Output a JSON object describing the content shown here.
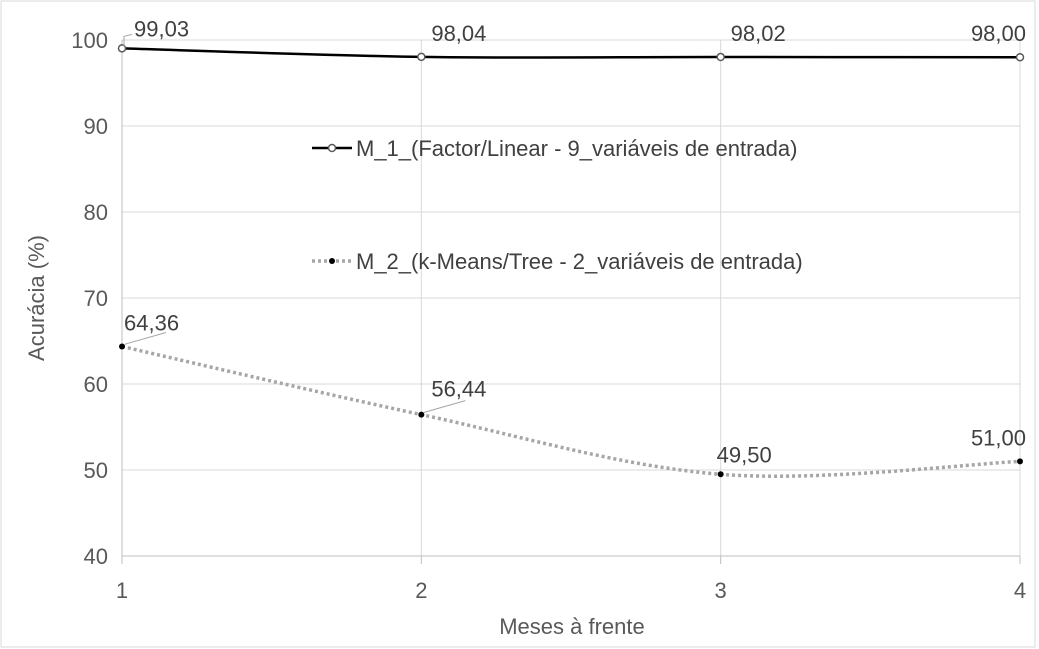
{
  "chart_data": {
    "type": "line",
    "title": "",
    "xlabel": "Meses à frente",
    "ylabel": "Acurácia (%)",
    "x": [
      1,
      2,
      3,
      4
    ],
    "x_tick_labels": [
      "1",
      "2",
      "3",
      "4"
    ],
    "ylim": [
      40,
      100
    ],
    "y_ticks": [
      40,
      50,
      60,
      70,
      80,
      90,
      100
    ],
    "y_tick_labels": [
      "40",
      "50",
      "60",
      "70",
      "80",
      "90",
      "100"
    ],
    "grid": true,
    "legend_position": "inside-center",
    "series": [
      {
        "name": "M_1_(Factor/Linear - 9_variáveis de entrada)",
        "values": [
          99.03,
          98.04,
          98.02,
          98.0
        ],
        "labels": [
          "99,03",
          "98,04",
          "98,02",
          "98,00"
        ],
        "color": "#000000",
        "line_style": "solid",
        "marker": "open-circle"
      },
      {
        "name": "M_2_(k-Means/Tree - 2_variáveis de entrada)",
        "values": [
          64.36,
          56.44,
          49.5,
          51.0
        ],
        "labels": [
          "64,36",
          "56,44",
          "49,50",
          "51,00"
        ],
        "color": "#a6a6a6",
        "line_style": "dotted",
        "marker": "filled-dot"
      }
    ]
  }
}
